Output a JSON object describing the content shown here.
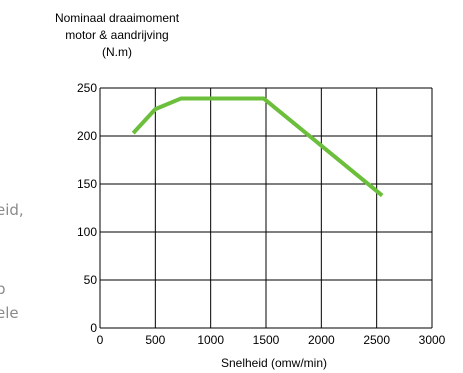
{
  "page_fragments": {
    "line1": "eid,",
    "line2": "p",
    "line3": "ele"
  },
  "chart_data": {
    "type": "line",
    "title_lines": [
      "Nominaal draaimoment",
      "motor & aandrijving",
      "(N.m)"
    ],
    "xlabel": "Snelheid (omw/min)",
    "ylabel": "Nominaal draaimoment motor & aandrijving (N.m)",
    "xlim": [
      0,
      3000
    ],
    "ylim": [
      0,
      250
    ],
    "xticks": [
      0,
      500,
      1000,
      1500,
      2000,
      2500,
      3000
    ],
    "yticks": [
      0,
      50,
      100,
      150,
      200,
      250
    ],
    "grid": true,
    "legend": "none",
    "series": [
      {
        "color": "#6bbf3b",
        "x": [
          300,
          500,
          730,
          1480,
          2550
        ],
        "y": [
          203,
          228,
          239,
          239,
          138
        ]
      }
    ]
  }
}
